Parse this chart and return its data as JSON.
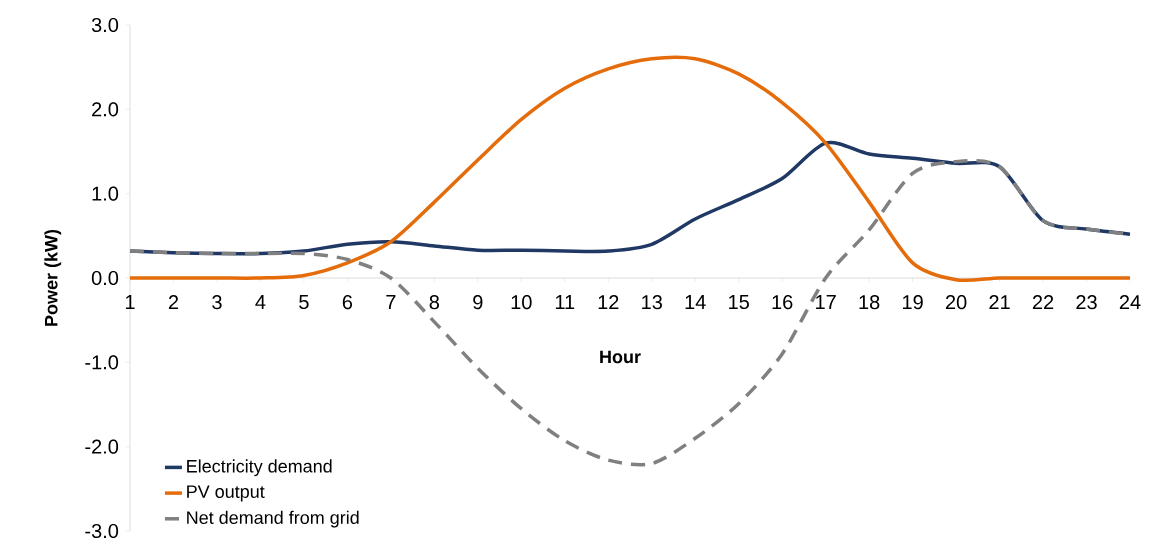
{
  "chart_data": {
    "type": "line",
    "xlabel": "Hour",
    "ylabel": "Power (kW)",
    "x": [
      1,
      2,
      3,
      4,
      5,
      6,
      7,
      8,
      9,
      10,
      11,
      12,
      13,
      14,
      15,
      16,
      17,
      18,
      19,
      20,
      21,
      22,
      23,
      24
    ],
    "series": [
      {
        "name": "Electricity demand",
        "color": "#1f3864",
        "line_style": "solid",
        "values": [
          0.32,
          0.3,
          0.29,
          0.29,
          0.32,
          0.4,
          0.43,
          0.38,
          0.33,
          0.33,
          0.32,
          0.32,
          0.4,
          0.7,
          0.93,
          1.18,
          1.6,
          1.47,
          1.42,
          1.36,
          1.32,
          0.68,
          0.58,
          0.52
        ]
      },
      {
        "name": "PV output",
        "color": "#e46c0a",
        "line_style": "solid",
        "values": [
          0,
          0,
          0,
          0,
          0.03,
          0.18,
          0.43,
          0.9,
          1.4,
          1.88,
          2.25,
          2.48,
          2.6,
          2.6,
          2.42,
          2.08,
          1.6,
          0.9,
          0.18,
          -0.02,
          0,
          0,
          0,
          0
        ]
      },
      {
        "name": "Net demand from grid",
        "color": "#808080",
        "line_style": "dashed",
        "values": [
          0.32,
          0.3,
          0.29,
          0.29,
          0.29,
          0.22,
          0.0,
          -0.52,
          -1.07,
          -1.55,
          -1.93,
          -2.16,
          -2.2,
          -1.9,
          -1.49,
          -0.9,
          0.0,
          0.57,
          1.24,
          1.38,
          1.32,
          0.68,
          0.58,
          0.52
        ]
      }
    ],
    "xlim": [
      1,
      24
    ],
    "xticks": [
      1,
      2,
      3,
      4,
      5,
      6,
      7,
      8,
      9,
      10,
      11,
      12,
      13,
      14,
      15,
      16,
      17,
      18,
      19,
      20,
      21,
      22,
      23,
      24
    ],
    "ylim": [
      -3,
      3
    ],
    "yticks": [
      {
        "value": -3,
        "label": "-3.0"
      },
      {
        "value": -2,
        "label": "-2.0"
      },
      {
        "value": -1,
        "label": "-1.0"
      },
      {
        "value": 0,
        "label": "0.0"
      },
      {
        "value": 1,
        "label": "1.0"
      },
      {
        "value": 2,
        "label": "2.0"
      },
      {
        "value": 3,
        "label": "3.0"
      }
    ],
    "grid": false,
    "legend": "bottom left",
    "marker": "none"
  }
}
